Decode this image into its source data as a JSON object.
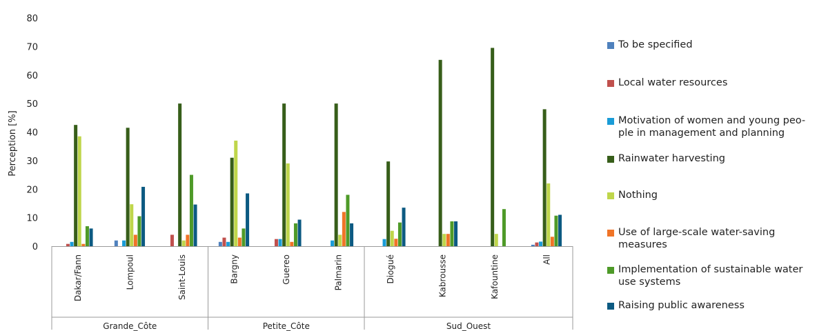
{
  "chart_data": {
    "type": "bar",
    "ylabel": "Perception [%]",
    "ylim": [
      0,
      80
    ],
    "yticks": [
      0,
      10,
      20,
      30,
      40,
      50,
      60,
      70,
      80
    ],
    "grid": false,
    "legend_position": "right",
    "categories": [
      "Dakar/Fann",
      "Lompoul",
      "Saint-Louis",
      "Bargny",
      "Guereo",
      "Palmarin",
      "Diogué",
      "Kabrousse",
      "Kafountine",
      "All"
    ],
    "groups": [
      {
        "label": "Grande_Côte",
        "categories": [
          "Dakar/Fann",
          "Lompoul",
          "Saint-Louis"
        ]
      },
      {
        "label": "Petite_Côte",
        "categories": [
          "Bargny",
          "Guereo",
          "Palmarin"
        ]
      },
      {
        "label": "Sud_Ouest",
        "categories": [
          "Diogué",
          "Kabrousse",
          "Kafountine",
          "All"
        ]
      }
    ],
    "series": [
      {
        "name": "To be specified",
        "color": "#4F81BD",
        "values": [
          0,
          2,
          0,
          1.5,
          0,
          0,
          0,
          0,
          0,
          0.5
        ]
      },
      {
        "name": "Local water resources",
        "color": "#C0504D",
        "values": [
          0.8,
          0,
          4,
          3,
          2.5,
          0,
          0,
          0,
          0,
          1.3
        ]
      },
      {
        "name": "Motivation of women and young peo-\nple in management and planning",
        "color": "#1A9CD7",
        "values": [
          1.5,
          2,
          0,
          1.5,
          2.5,
          2,
          2.5,
          0,
          0,
          1.6
        ]
      },
      {
        "name": "Rainwater harvesting",
        "color": "#375E1A",
        "values": [
          42.5,
          41.5,
          50,
          31,
          50,
          50,
          29.7,
          65.3,
          69.5,
          48
        ]
      },
      {
        "name": "Nothing",
        "color": "#BFD64B",
        "values": [
          38.5,
          14.7,
          2,
          37,
          29,
          4,
          5.4,
          4.3,
          4.3,
          22
        ]
      },
      {
        "name": "Use of large-scale water-saving\nmeasures",
        "color": "#F07427",
        "values": [
          0.8,
          4,
          4,
          3,
          1.5,
          12,
          2.6,
          4.3,
          0,
          3.3
        ]
      },
      {
        "name": "Implementation of sustainable water\nuse systems",
        "color": "#4E9A28",
        "values": [
          7,
          10.5,
          25,
          6.2,
          8,
          18,
          8.3,
          8.7,
          13,
          10.7
        ]
      },
      {
        "name": "Raising public awareness",
        "color": "#0C5A82",
        "values": [
          6.2,
          20.8,
          14.6,
          18.5,
          9.3,
          8,
          13.5,
          8.7,
          0,
          11
        ]
      }
    ]
  }
}
